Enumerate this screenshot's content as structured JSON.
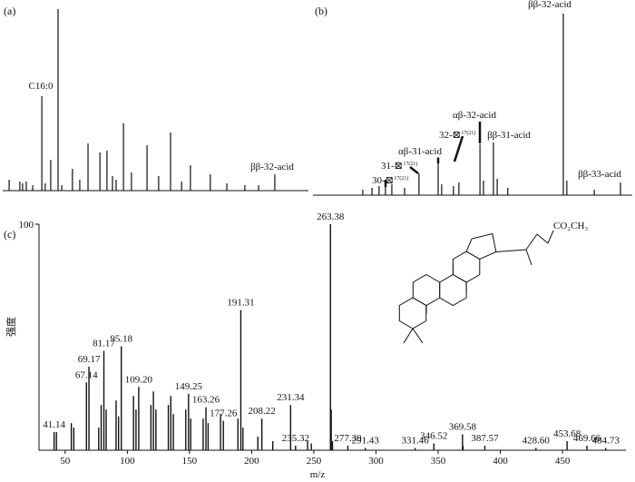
{
  "chart_data": [
    {
      "type": "peaks",
      "panel": "(a)",
      "x": [
        2.1,
        5.6,
        6.5,
        7.7,
        9.8,
        12.8,
        13.9,
        15.7,
        18.1,
        19.3,
        22.8,
        25.2,
        27.9,
        31.8,
        34.1,
        35.9,
        37.1,
        39.5,
        42.1,
        47.2,
        51,
        54.9,
        58.5,
        61.4,
        67.9,
        73.3,
        79.2,
        83.7,
        89
      ],
      "values": [
        6,
        5,
        4,
        5,
        3,
        52,
        4,
        17,
        100,
        3,
        12,
        6,
        26,
        21,
        22,
        8,
        6,
        37,
        10,
        25,
        8,
        32,
        5,
        14,
        9,
        4,
        3,
        3,
        9
      ],
      "xlim": [
        0,
        100
      ],
      "ylim": [
        0,
        100
      ],
      "color": "#111",
      "annotations": [
        {
          "text": "C16:0"
        },
        {
          "text": "ββ-32-acid"
        }
      ]
    },
    {
      "type": "peaks",
      "panel": "(b)",
      "x": [
        15.6,
        18.5,
        20.7,
        22.7,
        24.7,
        28.7,
        33.2,
        39.2,
        40.3,
        44,
        45.7,
        52.3,
        53.4,
        56.5,
        57.7,
        61,
        78.4,
        79.5,
        88.1,
        96.3
      ],
      "values": [
        3,
        4,
        5,
        6,
        6,
        4,
        12,
        21,
        6,
        5,
        7,
        28,
        8,
        29,
        9,
        4,
        100,
        8,
        3,
        7
      ],
      "xlim": [
        0,
        100
      ],
      "ylim": [
        0,
        100
      ],
      "color": "#111",
      "annotations": [
        {
          "text": "30-⊠",
          "sup": "17(21)"
        },
        {
          "text": "31-⊠",
          "sup": "17(21)"
        },
        {
          "text": "αβ-31-acid"
        },
        {
          "text": "32-⊠",
          "sup": "17(21)"
        },
        {
          "text": "αβ-32-acid"
        },
        {
          "text": "ββ-31-acid"
        },
        {
          "text": "ββ-32-acid"
        },
        {
          "text": "ββ-33-acid"
        }
      ]
    },
    {
      "type": "bar",
      "panel": "(c)",
      "x": [
        41.14,
        43,
        55,
        57,
        67.14,
        69.17,
        77,
        79,
        81.17,
        83,
        91,
        93,
        95.18,
        105,
        107,
        109.2,
        119,
        121,
        123,
        133,
        135,
        137,
        147,
        149.25,
        151,
        161,
        163.26,
        165,
        175,
        177.26,
        189,
        191.31,
        193,
        205,
        208.22,
        217,
        231.34,
        235.32,
        245,
        248,
        263.38,
        264,
        265,
        277.39,
        291.43,
        331.46,
        346.52,
        369.58,
        370,
        387.57,
        428.6,
        453.68,
        469.66,
        484.73
      ],
      "values": [
        8,
        8,
        12,
        10,
        30,
        37,
        10,
        20,
        44,
        18,
        22,
        15,
        46,
        24,
        18,
        28,
        20,
        26,
        18,
        20,
        24,
        16,
        18,
        25,
        14,
        14,
        19,
        12,
        16,
        13,
        14,
        62,
        10,
        6,
        14,
        4,
        20,
        2,
        4,
        3,
        100,
        18,
        4,
        2,
        1,
        1,
        3,
        7,
        2,
        2,
        1,
        4,
        2,
        1
      ],
      "x_labels": [
        "41.14",
        null,
        null,
        null,
        "67.14",
        "69.17",
        null,
        null,
        "81.17",
        null,
        null,
        null,
        "95.18",
        null,
        null,
        "109.20",
        null,
        null,
        null,
        null,
        null,
        null,
        null,
        "149.25",
        null,
        null,
        "163.26",
        null,
        null,
        "177.26",
        null,
        "191.31",
        null,
        null,
        "208.22",
        null,
        "231.34",
        "235.32",
        null,
        null,
        "263.38",
        null,
        null,
        "277.39",
        "291.43",
        "331.46",
        "346.52",
        "369.58",
        null,
        "387.57",
        "428.60",
        "453.68",
        "469.66",
        "484.73"
      ],
      "xlabel": "m/z",
      "ylabel": "强度",
      "xlim": [
        29,
        501
      ],
      "ylim": [
        0,
        100
      ],
      "xticks": [
        50,
        100,
        150,
        200,
        250,
        300,
        350,
        400,
        450
      ],
      "yticks": [
        100
      ],
      "color": "#111"
    }
  ],
  "structure": {
    "label": "CO₂CH₃"
  }
}
